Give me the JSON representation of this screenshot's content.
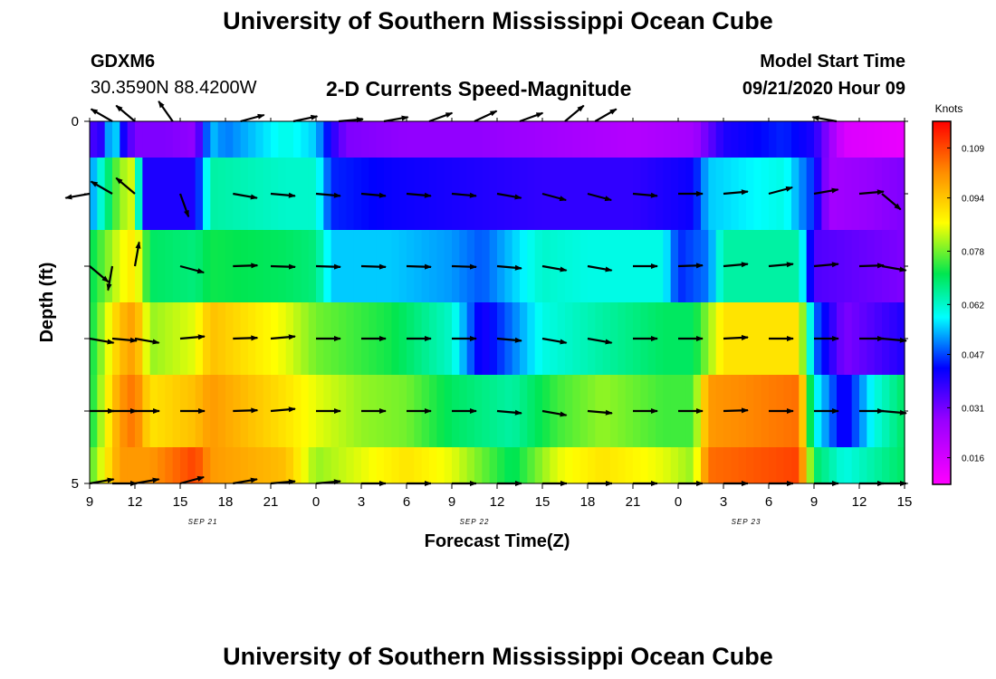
{
  "header": {
    "title_top": "University of Southern Mississippi Ocean Cube",
    "station": "GDXM6",
    "coords": "30.3590N 88.4200W",
    "plot_title": "2-D Currents Speed-Magnitude",
    "model_start_label": "Model Start Time",
    "model_start_time": "09/21/2020 Hour 09",
    "title_bottom": "University of Southern Mississippi Ocean Cube"
  },
  "chart_data": {
    "type": "heatmap",
    "title": "2-D Currents Speed-Magnitude",
    "xlabel": "Forecast Time(Z)",
    "ylabel": "Depth (ft)",
    "x_tick_labels": [
      "9",
      "12",
      "15",
      "18",
      "21",
      "0",
      "3",
      "6",
      "9",
      "12",
      "15",
      "18",
      "21",
      "0",
      "3",
      "6",
      "9",
      "12",
      "15"
    ],
    "date_labels": [
      {
        "text": "SEP 21",
        "tick_index": 2.5
      },
      {
        "text": "SEP 22",
        "tick_index": 8.5
      },
      {
        "text": "SEP 23",
        "tick_index": 14.5
      }
    ],
    "y_tick_labels": [
      {
        "value": 0,
        "label": "0"
      },
      {
        "value": 1,
        "label": ""
      },
      {
        "value": 2,
        "label": ""
      },
      {
        "value": 3,
        "label": ""
      },
      {
        "value": 4,
        "label": ""
      },
      {
        "value": 5,
        "label": "5"
      }
    ],
    "ylim": [
      0,
      5
    ],
    "xlim_hours": [
      0,
      54
    ],
    "colorbar": {
      "units": "Knots",
      "vmin": 0.008,
      "vmax": 0.117,
      "ticks": [
        "0.109",
        "0.094",
        "0.078",
        "0.062",
        "0.047",
        "0.031",
        "0.016"
      ],
      "tick_values": [
        0.109,
        0.094,
        0.078,
        0.062,
        0.047,
        0.031,
        0.016
      ]
    },
    "depth_rows": [
      {
        "depth_range": [
          0,
          0.5
        ],
        "speed_profile": [
          [
            0,
            0.035
          ],
          [
            1,
            0.04
          ],
          [
            1.5,
            0.065
          ],
          [
            2,
            0.045
          ],
          [
            3,
            0.03
          ],
          [
            5,
            0.03
          ],
          [
            7,
            0.028
          ],
          [
            8,
            0.055
          ],
          [
            9,
            0.05
          ],
          [
            11,
            0.055
          ],
          [
            13,
            0.06
          ],
          [
            15,
            0.055
          ],
          [
            16,
            0.04
          ],
          [
            17,
            0.03
          ],
          [
            21,
            0.028
          ],
          [
            26,
            0.028
          ],
          [
            31,
            0.025
          ],
          [
            36,
            0.022
          ],
          [
            40,
            0.025
          ],
          [
            42,
            0.04
          ],
          [
            46,
            0.045
          ],
          [
            48,
            0.04
          ],
          [
            50,
            0.015
          ],
          [
            54,
            0.012
          ]
        ]
      },
      {
        "depth_range": [
          0.5,
          1.5
        ],
        "speed_profile": [
          [
            0,
            0.05
          ],
          [
            2,
            0.08
          ],
          [
            3,
            0.085
          ],
          [
            3.5,
            0.04
          ],
          [
            7,
            0.04
          ],
          [
            8,
            0.065
          ],
          [
            13,
            0.062
          ],
          [
            15,
            0.062
          ],
          [
            16,
            0.045
          ],
          [
            20,
            0.042
          ],
          [
            25,
            0.04
          ],
          [
            30,
            0.038
          ],
          [
            36,
            0.038
          ],
          [
            40,
            0.042
          ],
          [
            41,
            0.055
          ],
          [
            46,
            0.06
          ],
          [
            48,
            0.045
          ],
          [
            49,
            0.025
          ],
          [
            54,
            0.03
          ]
        ]
      },
      {
        "depth_range": [
          1.5,
          2.5
        ],
        "speed_profile": [
          [
            0,
            0.07
          ],
          [
            2,
            0.085
          ],
          [
            3,
            0.09
          ],
          [
            4,
            0.07
          ],
          [
            7,
            0.068
          ],
          [
            8,
            0.072
          ],
          [
            13,
            0.07
          ],
          [
            15,
            0.068
          ],
          [
            16,
            0.055
          ],
          [
            20,
            0.055
          ],
          [
            24,
            0.052
          ],
          [
            26,
            0.048
          ],
          [
            30,
            0.062
          ],
          [
            33,
            0.06
          ],
          [
            38,
            0.06
          ],
          [
            39,
            0.045
          ],
          [
            41,
            0.05
          ],
          [
            42,
            0.065
          ],
          [
            47,
            0.065
          ],
          [
            48,
            0.035
          ],
          [
            54,
            0.03
          ]
        ]
      },
      {
        "depth_range": [
          2.5,
          3.5
        ],
        "speed_profile": [
          [
            0,
            0.07
          ],
          [
            2,
            0.095
          ],
          [
            3,
            0.1
          ],
          [
            4,
            0.08
          ],
          [
            7,
            0.085
          ],
          [
            8,
            0.095
          ],
          [
            13,
            0.085
          ],
          [
            15,
            0.078
          ],
          [
            20,
            0.072
          ],
          [
            24,
            0.062
          ],
          [
            26,
            0.04
          ],
          [
            30,
            0.06
          ],
          [
            34,
            0.065
          ],
          [
            38,
            0.07
          ],
          [
            40,
            0.07
          ],
          [
            42,
            0.09
          ],
          [
            47,
            0.09
          ],
          [
            48,
            0.05
          ],
          [
            50,
            0.03
          ],
          [
            54,
            0.04
          ]
        ]
      },
      {
        "depth_range": [
          3.5,
          4.5
        ],
        "speed_profile": [
          [
            0,
            0.07
          ],
          [
            2,
            0.1
          ],
          [
            3,
            0.105
          ],
          [
            4,
            0.09
          ],
          [
            7,
            0.095
          ],
          [
            8,
            0.1
          ],
          [
            13,
            0.09
          ],
          [
            15,
            0.085
          ],
          [
            18,
            0.08
          ],
          [
            21,
            0.078
          ],
          [
            24,
            0.07
          ],
          [
            28,
            0.065
          ],
          [
            31,
            0.075
          ],
          [
            34,
            0.08
          ],
          [
            38,
            0.075
          ],
          [
            40,
            0.075
          ],
          [
            41,
            0.1
          ],
          [
            47,
            0.105
          ],
          [
            48,
            0.06
          ],
          [
            50,
            0.04
          ],
          [
            52,
            0.06
          ],
          [
            54,
            0.07
          ]
        ]
      },
      {
        "depth_range": [
          4.5,
          5
        ],
        "speed_profile": [
          [
            0,
            0.075
          ],
          [
            2,
            0.1
          ],
          [
            4,
            0.1
          ],
          [
            7,
            0.11
          ],
          [
            8,
            0.1
          ],
          [
            13,
            0.095
          ],
          [
            15,
            0.08
          ],
          [
            18,
            0.085
          ],
          [
            21,
            0.09
          ],
          [
            24,
            0.085
          ],
          [
            28,
            0.07
          ],
          [
            31,
            0.085
          ],
          [
            34,
            0.09
          ],
          [
            38,
            0.085
          ],
          [
            40,
            0.08
          ],
          [
            41,
            0.105
          ],
          [
            47,
            0.11
          ],
          [
            48,
            0.07
          ],
          [
            50,
            0.06
          ],
          [
            54,
            0.07
          ]
        ]
      }
    ],
    "vectors": [
      {
        "depth": 0,
        "hours": [
          1.5,
          3,
          5.5,
          10,
          13.5,
          16.5,
          19.5,
          22.5,
          25.5,
          28.5,
          31.5,
          33.5,
          49.5
        ],
        "angles": [
          -150,
          -140,
          -125,
          -15,
          -12,
          -5,
          -10,
          -20,
          -25,
          -20,
          -40,
          -30,
          -170
        ]
      },
      {
        "depth": 1,
        "hours": [
          0,
          1.5,
          3,
          6,
          9.5,
          12,
          15,
          18,
          21,
          24,
          27,
          30,
          33,
          36,
          39,
          42,
          45,
          48,
          51,
          52.5
        ],
        "angles": [
          170,
          -150,
          -140,
          70,
          10,
          5,
          5,
          5,
          5,
          5,
          10,
          15,
          15,
          5,
          0,
          -5,
          -15,
          -10,
          -5,
          40
        ]
      },
      {
        "depth": 2,
        "hours": [
          0,
          1.5,
          3,
          6,
          9.5,
          12,
          15,
          18,
          21,
          24,
          27,
          30,
          33,
          36,
          39,
          42,
          45,
          48,
          51,
          52.5
        ],
        "angles": [
          40,
          100,
          -80,
          15,
          -2,
          2,
          2,
          2,
          2,
          2,
          5,
          10,
          10,
          0,
          -2,
          -5,
          -5,
          -5,
          -2,
          10
        ]
      },
      {
        "depth": 3,
        "hours": [
          0,
          1.5,
          3,
          6,
          9.5,
          12,
          15,
          18,
          21,
          24,
          27,
          30,
          33,
          36,
          39,
          42,
          45,
          48,
          51,
          52.5
        ],
        "angles": [
          10,
          5,
          10,
          -5,
          -2,
          -5,
          0,
          0,
          0,
          0,
          5,
          10,
          10,
          0,
          0,
          -3,
          0,
          0,
          0,
          5
        ]
      },
      {
        "depth": 4,
        "hours": [
          0,
          1.5,
          3,
          6,
          9.5,
          12,
          15,
          18,
          21,
          24,
          27,
          30,
          33,
          36,
          39,
          42,
          45,
          48,
          51,
          52.5
        ],
        "angles": [
          0,
          0,
          0,
          0,
          -2,
          -5,
          0,
          0,
          0,
          0,
          5,
          10,
          5,
          0,
          0,
          -2,
          0,
          0,
          0,
          5
        ]
      },
      {
        "depth": 5,
        "hours": [
          0,
          1.5,
          3,
          6,
          9.5,
          12,
          15,
          18,
          21,
          24,
          27,
          30,
          33,
          36,
          39,
          42,
          45,
          48,
          51,
          52.5
        ],
        "angles": [
          -10,
          0,
          -10,
          -15,
          -10,
          -5,
          -5,
          0,
          0,
          0,
          0,
          0,
          0,
          0,
          0,
          0,
          0,
          0,
          0,
          0
        ]
      }
    ]
  }
}
